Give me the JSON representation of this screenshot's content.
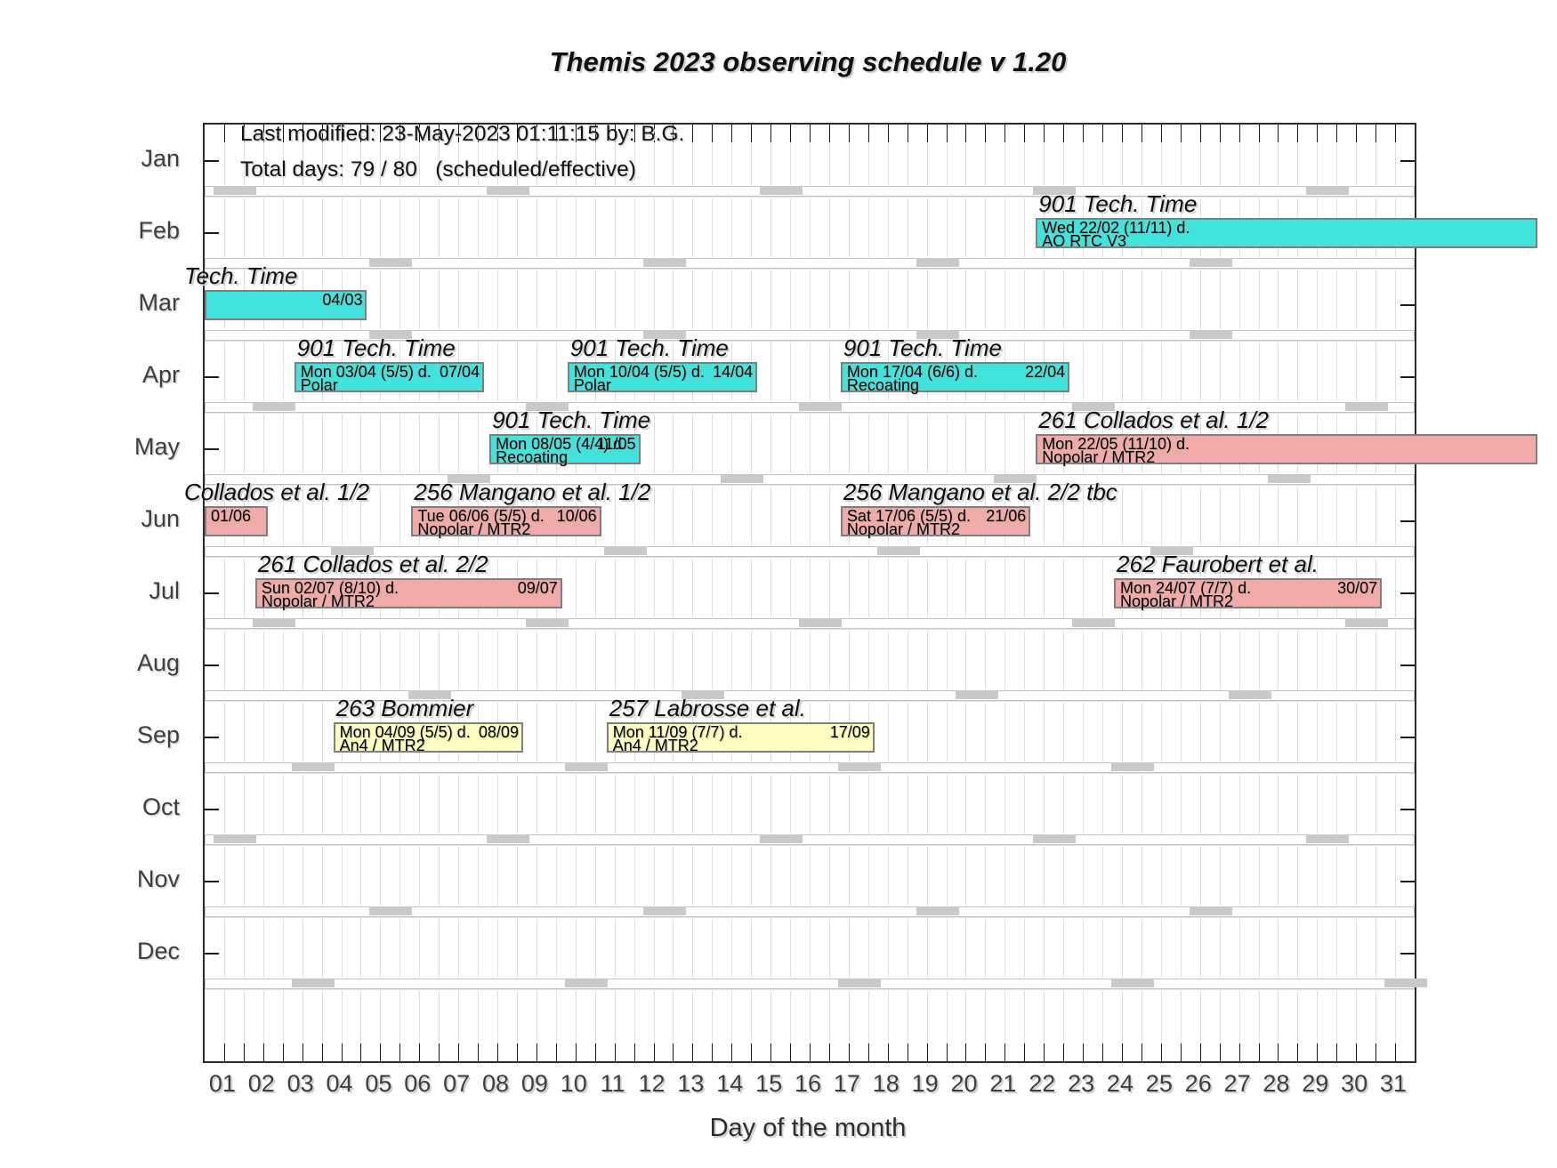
{
  "title": "Themis 2023 observing schedule v 1.20",
  "annotation": {
    "last_modified": "Last modified: 23-May-2023 01:11:15 by: B.G.",
    "total_days": "Total days: 79 / 80   (scheduled/effective)"
  },
  "y_axis": {
    "months": [
      "Jan",
      "Feb",
      "Mar",
      "Apr",
      "May",
      "Jun",
      "Jul",
      "Aug",
      "Sep",
      "Oct",
      "Nov",
      "Dec"
    ]
  },
  "x_axis": {
    "label": "Day of the month",
    "days": [
      "01",
      "02",
      "03",
      "04",
      "05",
      "06",
      "07",
      "08",
      "09",
      "10",
      "11",
      "12",
      "13",
      "14",
      "15",
      "16",
      "17",
      "18",
      "19",
      "20",
      "21",
      "22",
      "23",
      "24",
      "25",
      "26",
      "27",
      "28",
      "29",
      "30",
      "31"
    ]
  },
  "colors": {
    "tech_time": "#41E3DC",
    "nopolar": "#F0ABA9",
    "an4": "#FFFFC2"
  },
  "chart_data": {
    "type": "bar",
    "orientation": "horizontal-gantt",
    "x_range_days": [
      1,
      31
    ],
    "events": [
      {
        "month": "Feb",
        "row": 2,
        "color": "tech_time",
        "title": "901 Tech. Time",
        "start": 22,
        "days": 11,
        "line1": "Wed 22/02 (11/11) d.",
        "line2": "AO RTC V3",
        "end_label": "",
        "extends_off_chart": true
      },
      {
        "month": "Mar",
        "row": 3,
        "color": "tech_time",
        "title": "Tech. Time",
        "start": 1,
        "days": 4,
        "line1": "",
        "line2": "",
        "end_label": "04/03",
        "flush_left": true
      },
      {
        "month": "Apr",
        "row": 4,
        "color": "tech_time",
        "title": "901 Tech. Time",
        "start": 3,
        "days": 5,
        "line1": "Mon 03/04 (5/5) d.",
        "line2": "Polar",
        "end_label": "07/04"
      },
      {
        "month": "Apr",
        "row": 4,
        "color": "tech_time",
        "title": "901 Tech. Time",
        "start": 10,
        "days": 5,
        "line1": "Mon 10/04 (5/5) d.",
        "line2": "Polar",
        "end_label": "14/04"
      },
      {
        "month": "Apr",
        "row": 4,
        "color": "tech_time",
        "title": "901 Tech. Time",
        "start": 17,
        "days": 6,
        "line1": "Mon 17/04 (6/6) d.",
        "line2": "Recoating",
        "end_label": "22/04"
      },
      {
        "month": "May",
        "row": 5,
        "color": "tech_time",
        "title": "901 Tech. Time",
        "start": 8,
        "days": 4,
        "line1": "Mon 08/05 (4/4) d.",
        "line2": "Recoating",
        "end_label": "11/05"
      },
      {
        "month": "May",
        "row": 5,
        "color": "nopolar",
        "title": "261 Collados et al. 1/2",
        "start": 22,
        "days": 11,
        "line1": "Mon 22/05 (11/10) d.",
        "line2": "Nopolar / MTR2",
        "end_label": "",
        "extends_off_chart": true
      },
      {
        "month": "Jun",
        "row": 6,
        "color": "nopolar",
        "title": "Collados et al. 1/2",
        "start": 1,
        "days": 1,
        "width_days": 1.45,
        "line1": "01/06",
        "line2": "",
        "end_label": "",
        "flush_left": true
      },
      {
        "month": "Jun",
        "row": 6,
        "color": "nopolar",
        "title": "256 Mangano et al. 1/2",
        "start": 6,
        "days": 5,
        "line1": "Tue 06/06 (5/5) d.",
        "line2": "Nopolar / MTR2",
        "end_label": "10/06"
      },
      {
        "month": "Jun",
        "row": 6,
        "color": "nopolar",
        "title": "256 Mangano et al. 2/2 tbc",
        "start": 17,
        "days": 5,
        "line1": "Sat 17/06 (5/5) d.",
        "line2": "Nopolar / MTR2",
        "end_label": "21/06"
      },
      {
        "month": "Jul",
        "row": 7,
        "color": "nopolar",
        "title": "261 Collados et al. 2/2",
        "start": 2,
        "days": 8,
        "line1": "Sun 02/07 (8/10) d.",
        "line2": "Nopolar / MTR2",
        "end_label": "09/07"
      },
      {
        "month": "Jul",
        "row": 7,
        "color": "nopolar",
        "title": "262 Faurobert et al.",
        "start": 24,
        "days": 7,
        "line1": "Mon 24/07 (7/7) d.",
        "line2": "Nopolar / MTR2",
        "end_label": "30/07"
      },
      {
        "month": "Sep",
        "row": 9,
        "color": "an4",
        "title": "263 Bommier",
        "start": 4,
        "days": 5,
        "line1": "Mon 04/09 (5/5) d.",
        "line2": "An4 / MTR2",
        "end_label": "08/09"
      },
      {
        "month": "Sep",
        "row": 9,
        "color": "an4",
        "title": "257 Labrosse et al.",
        "start": 11,
        "days": 7,
        "line1": "Mon 11/09 (7/7) d.",
        "line2": "An4 / MTR2",
        "end_label": "17/09"
      }
    ],
    "sunday_markers": {
      "Jan": [
        1,
        8,
        15,
        22,
        29
      ],
      "Feb": [
        5,
        12,
        19,
        26
      ],
      "Mar": [
        5,
        12,
        19,
        26
      ],
      "Apr": [
        2,
        9,
        16,
        23,
        30
      ],
      "May": [
        7,
        14,
        21,
        28
      ],
      "Jun": [
        4,
        11,
        18,
        25
      ],
      "Jul": [
        2,
        9,
        16,
        23,
        30
      ],
      "Aug": [
        6,
        13,
        20,
        27
      ],
      "Sep": [
        3,
        10,
        17,
        24
      ],
      "Oct": [
        1,
        8,
        15,
        22,
        29
      ],
      "Nov": [
        5,
        12,
        19,
        26
      ],
      "Dec": [
        3,
        10,
        17,
        24,
        31
      ]
    }
  }
}
